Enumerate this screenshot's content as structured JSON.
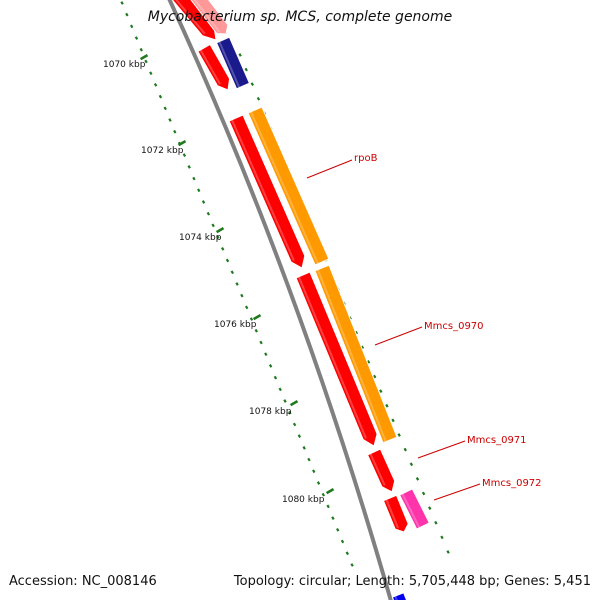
{
  "title": "Mycobacterium sp. MCS, complete genome",
  "footer": {
    "accession": "Accession: NC_008146",
    "summary": "Topology: circular; Length: 5,705,448 bp; Genes: 5,451"
  },
  "colors": {
    "backbone": "#808080",
    "tick": "#1f7a1f",
    "label": "#cc0000",
    "gene_red": "#ff0000",
    "gene_orange": "#ff9900",
    "gene_navy": "#1a1a8c",
    "gene_pink": "#ff33aa",
    "gene_blue": "#0000ee"
  },
  "scale": {
    "labels": [
      {
        "text": "1070 kbp"
      },
      {
        "text": "1072 kbp"
      },
      {
        "text": "1074 kbp"
      },
      {
        "text": "1076 kbp"
      },
      {
        "text": "1078 kbp"
      },
      {
        "text": "1080 kbp"
      }
    ]
  },
  "genes": [
    {
      "track": "inner",
      "color": "#ff0000"
    },
    {
      "track": "outer",
      "color": "#ff9999"
    },
    {
      "track": "inner",
      "color": "#ff0000"
    },
    {
      "track": "outer",
      "color": "#1a1a8c"
    },
    {
      "track": "inner",
      "color": "#ff0000"
    },
    {
      "track": "outer",
      "color": "#ff9900"
    },
    {
      "track": "inner",
      "color": "#ff0000"
    },
    {
      "track": "outer",
      "color": "#ff9900"
    },
    {
      "track": "inner",
      "color": "#ff0000"
    },
    {
      "track": "inner",
      "color": "#ff0000"
    },
    {
      "track": "outer",
      "color": "#ff33aa"
    },
    {
      "track": "inner",
      "color": "#0000ee"
    }
  ],
  "gene_labels": [
    {
      "text": "rpoB"
    },
    {
      "text": "Mmcs_0970"
    },
    {
      "text": "Mmcs_0971"
    },
    {
      "text": "Mmcs_0972"
    }
  ]
}
